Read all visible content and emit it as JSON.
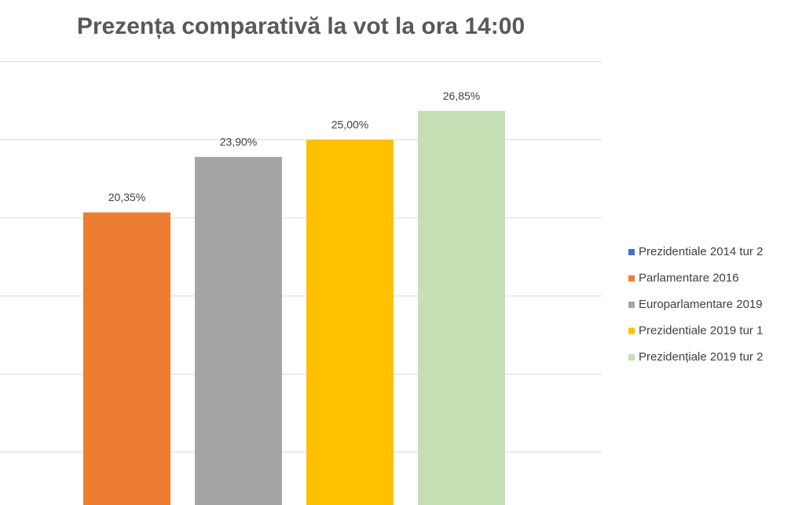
{
  "chart_data": {
    "type": "bar",
    "title": "Prezența comparativă la vot la ora 14:00",
    "series": [
      {
        "name": "Prezidentiale 2014 tur 2",
        "color": "#4472c4",
        "values": [
          null
        ]
      },
      {
        "name": "Parlamentare 2016",
        "color": "#ed7d31",
        "values": [
          20.35
        ],
        "value_labels": [
          "20,35%"
        ]
      },
      {
        "name": "Europarlamentare 2019",
        "color": "#a5a5a5",
        "values": [
          23.9
        ],
        "value_labels": [
          "23,90%"
        ]
      },
      {
        "name": "Prezidentiale 2019 tur 1",
        "color": "#ffc000",
        "values": [
          25.0
        ],
        "value_labels": [
          "25,00%"
        ]
      },
      {
        "name": "Prezidențiale 2019 tur 2",
        "color": "#c5e0b4",
        "values": [
          26.85
        ],
        "value_labels": [
          "26,85%"
        ]
      }
    ],
    "ylim": [
      1.63,
      33.94
    ],
    "yticks": [
      5,
      10,
      15,
      20,
      25,
      30
    ],
    "grid": true,
    "legend": "right"
  }
}
